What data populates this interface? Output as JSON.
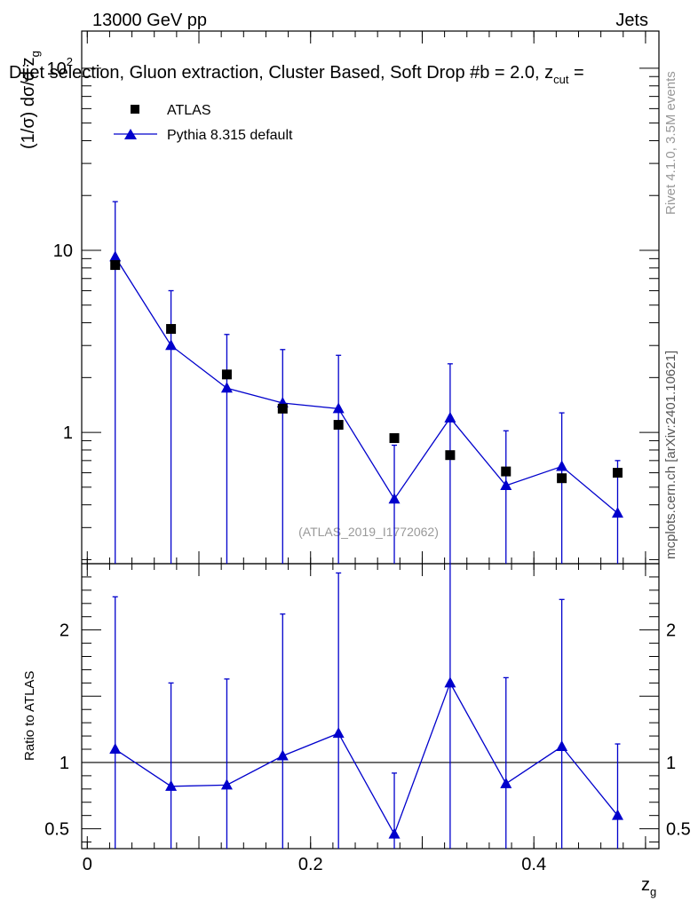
{
  "header": {
    "left": "13000 GeV pp",
    "right": "Jets",
    "title": "Dijet selection, Gluon extraction, Cluster Based, Soft Drop #b = 2.0, z",
    "title_sub": "cut",
    "title_end": " ="
  },
  "side": {
    "rivet": "Rivet 4.1.0,  3.5M events",
    "mcplots": "mcplots.cern.ch [arXiv:2401.10621]"
  },
  "watermark": "(ATLAS_2019_I1772062)",
  "colors": {
    "data": "#000000",
    "mc": "#0000cc",
    "axis": "#000000",
    "watermark": "#999999"
  },
  "chart_data": [
    {
      "type": "scatter",
      "panel": "main",
      "ylabel": "(1/σ) dσ/d z",
      "ylabel_sub": "g",
      "yscale": "log",
      "ylim": [
        0.19,
        160
      ],
      "xlim": [
        -0.005,
        0.512
      ],
      "y_ticks": [
        {
          "value": 1,
          "label": "1"
        },
        {
          "value": 10,
          "label": "10"
        },
        {
          "value": 100,
          "label": "10",
          "sup": "2"
        }
      ],
      "legend": {
        "position": "top-left",
        "entries": [
          {
            "label": "ATLAS",
            "marker": "square"
          },
          {
            "label": "Pythia 8.315 default",
            "marker": "triangle"
          }
        ]
      },
      "series": [
        {
          "name": "ATLAS",
          "x": [
            0.025,
            0.075,
            0.125,
            0.175,
            0.225,
            0.275,
            0.325,
            0.375,
            0.425,
            0.475
          ],
          "y": [
            8.3,
            3.7,
            2.08,
            1.35,
            1.1,
            0.93,
            0.75,
            0.61,
            0.56,
            0.6
          ]
        },
        {
          "name": "Pythia 8.315 default",
          "x": [
            0.025,
            0.075,
            0.125,
            0.175,
            0.225,
            0.275,
            0.325,
            0.375,
            0.425,
            0.475
          ],
          "y": [
            9.2,
            3.0,
            1.75,
            1.45,
            1.35,
            0.43,
            1.2,
            0.51,
            0.65,
            0.36
          ],
          "err_up": [
            18.5,
            6.0,
            3.45,
            2.85,
            2.65,
            0.85,
            2.38,
            1.02,
            1.28,
            0.7
          ],
          "err_down": [
            0.0,
            0.0,
            0.0,
            0.0,
            0.0,
            0.0,
            0.0,
            0.0,
            0.0,
            0.0
          ]
        }
      ]
    },
    {
      "type": "line",
      "panel": "ratio",
      "ylabel": "Ratio to ATLAS",
      "xlabel": "z",
      "xlabel_sub": "g",
      "ylim": [
        0.35,
        2.5
      ],
      "xlim": [
        -0.005,
        0.512
      ],
      "reference": 1,
      "y_ticks": [
        {
          "value": 0.5,
          "label": "0.5"
        },
        {
          "value": 1,
          "label": "1"
        },
        {
          "value": 2,
          "label": "2"
        }
      ],
      "x_ticks": [
        {
          "value": 0,
          "label": "0"
        },
        {
          "value": 0.2,
          "label": "0.2"
        },
        {
          "value": 0.4,
          "label": "0.4"
        }
      ],
      "series": [
        {
          "name": "Pythia 8.315 default",
          "x": [
            0.025,
            0.075,
            0.125,
            0.175,
            0.225,
            0.275,
            0.325,
            0.375,
            0.425,
            0.475
          ],
          "y": [
            1.1,
            0.82,
            0.83,
            1.05,
            1.22,
            0.46,
            1.6,
            0.84,
            1.12,
            0.6
          ],
          "err_up": [
            2.25,
            1.6,
            1.63,
            2.12,
            2.43,
            0.92,
            3.2,
            1.64,
            2.23,
            1.14
          ],
          "err_down": [
            0.0,
            0.0,
            0.0,
            0.0,
            0.0,
            0.0,
            0.0,
            0.0,
            0.0,
            0.0
          ]
        }
      ]
    }
  ]
}
